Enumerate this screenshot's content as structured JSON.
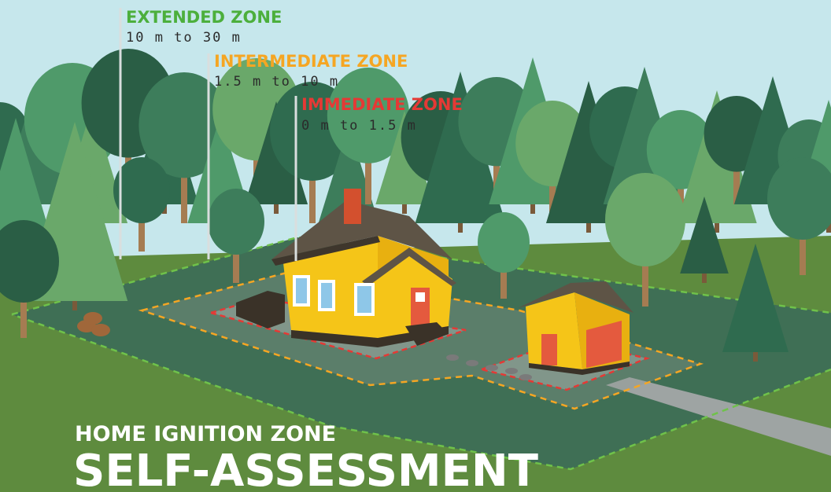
{
  "zones": [
    {
      "name": "EXTENDED ZONE",
      "range": "10 m to 30 m"
    },
    {
      "name": "INTERMEDIATE ZONE",
      "range": "1.5 m to 10 m"
    },
    {
      "name": "IMMEDIATE ZONE",
      "range": "0 m to 1.5 m"
    }
  ],
  "header": {
    "subtitle": "HOME IGNITION ZONE",
    "title": "SELF-ASSESSMENT"
  }
}
